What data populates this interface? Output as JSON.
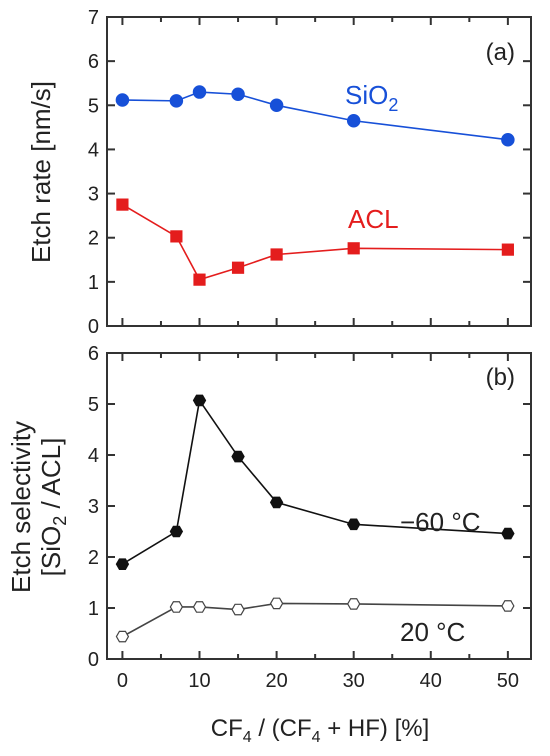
{
  "chart_data": [
    {
      "type": "line",
      "panel_tag": "(a)",
      "ylabel": "Etch rate [nm/s]",
      "ylim": [
        0,
        7
      ],
      "yticks": [
        0,
        1,
        2,
        3,
        4,
        5,
        6,
        7
      ],
      "xlim": [
        -2,
        53
      ],
      "x": [
        0,
        7,
        10,
        15,
        20,
        30,
        50
      ],
      "series": [
        {
          "name_base": "SiO",
          "name_sub": "2",
          "marker": "circle",
          "filled": true,
          "color": "#1750d8",
          "values": [
            5.12,
            5.1,
            5.3,
            5.25,
            5.0,
            4.65,
            4.22
          ]
        },
        {
          "name": "ACL",
          "marker": "square",
          "filled": true,
          "color": "#e41d1d",
          "values": [
            2.75,
            2.03,
            1.05,
            1.32,
            1.62,
            1.76,
            1.73
          ]
        }
      ]
    },
    {
      "type": "line",
      "panel_tag": "(b)",
      "ylabel_line1": "Etch selectivity",
      "ylabel_line2_pre": "[SiO",
      "ylabel_line2_sub": "2",
      "ylabel_line2_post": " / ACL]",
      "ylim": [
        0,
        6
      ],
      "yticks": [
        0,
        1,
        2,
        3,
        4,
        5,
        6
      ],
      "xlim": [
        -2,
        53
      ],
      "x": [
        0,
        7,
        10,
        15,
        20,
        30,
        50
      ],
      "xticks": [
        0,
        10,
        20,
        30,
        40,
        50
      ],
      "xlabel_pre": "CF",
      "xlabel_sub1": "4",
      "xlabel_mid": " / (CF",
      "xlabel_sub2": "4",
      "xlabel_post": " + HF) [%]",
      "series": [
        {
          "name": "−60 °C",
          "marker": "hexagon",
          "filled": true,
          "color": "#111111",
          "values": [
            1.86,
            2.5,
            5.07,
            3.97,
            3.07,
            2.64,
            2.46
          ]
        },
        {
          "name": "20 °C",
          "marker": "hexagon",
          "filled": false,
          "color": "#444444",
          "values": [
            0.44,
            1.02,
            1.02,
            0.97,
            1.09,
            1.08,
            1.04
          ]
        }
      ]
    }
  ]
}
